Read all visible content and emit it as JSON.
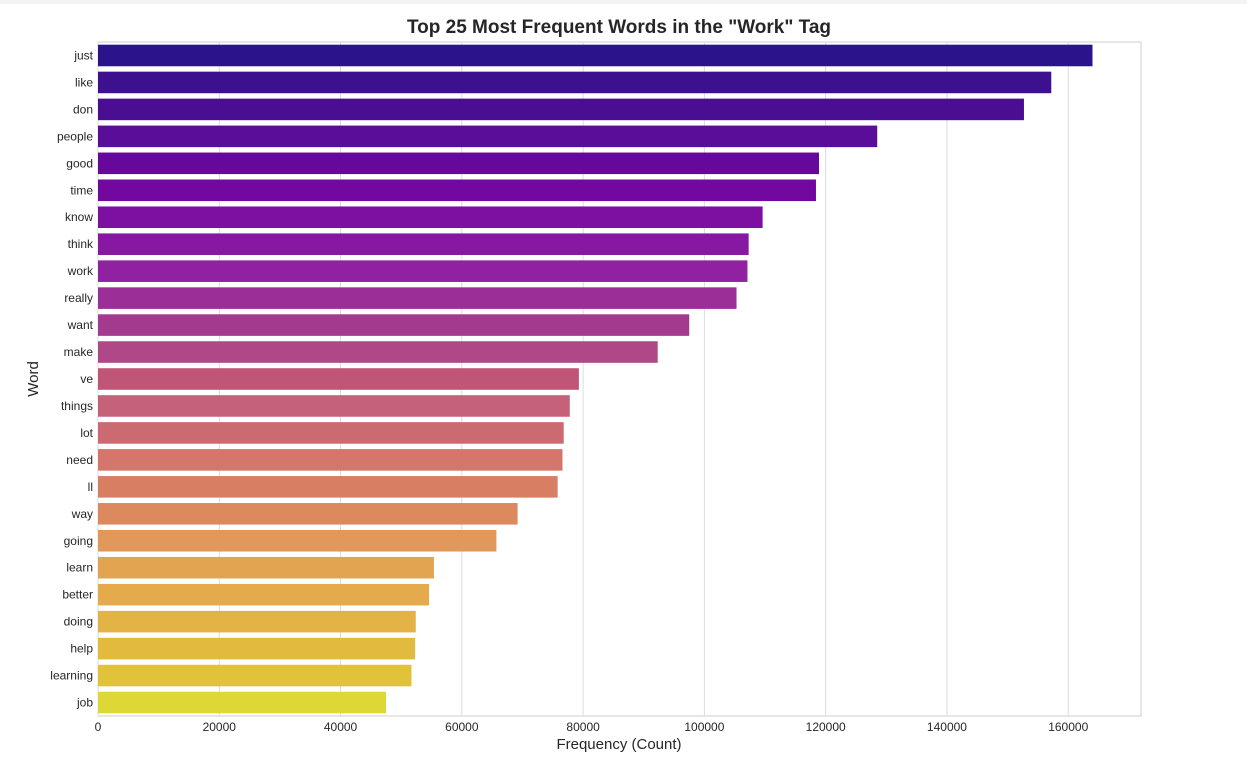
{
  "chart_data": {
    "type": "bar",
    "orientation": "horizontal",
    "title": "Top 25 Most Frequent Words in the \"Work\" Tag",
    "xlabel": "Frequency (Count)",
    "ylabel": "Word",
    "xlim": [
      0,
      172000
    ],
    "xticks": [
      0,
      20000,
      40000,
      60000,
      80000,
      100000,
      120000,
      140000,
      160000
    ],
    "grid": "vertical",
    "colormap": "plasma",
    "categories": [
      "just",
      "like",
      "don",
      "people",
      "good",
      "time",
      "know",
      "think",
      "work",
      "really",
      "want",
      "make",
      "ve",
      "things",
      "lot",
      "need",
      "ll",
      "way",
      "going",
      "learn",
      "better",
      "doing",
      "help",
      "learning",
      "job"
    ],
    "values": [
      164000,
      157200,
      152700,
      128500,
      118900,
      118400,
      109600,
      107300,
      107100,
      105300,
      97500,
      92300,
      79300,
      77800,
      76800,
      76600,
      75800,
      69200,
      65700,
      55400,
      54600,
      52400,
      52300,
      51700,
      47500
    ],
    "colors": [
      "#2b138b",
      "#3c108e",
      "#4a0e93",
      "#590d98",
      "#65099c",
      "#72089f",
      "#7d0fa1",
      "#8618a1",
      "#9021a0",
      "#9b2f97",
      "#a33a8e",
      "#ae4886",
      "#bf5677",
      "#c6617a",
      "#cc6a72",
      "#d4766b",
      "#d87f63",
      "#dc8a5d",
      "#e1985a",
      "#e3a451",
      "#e4aa4c",
      "#e3b345",
      "#e2bb3e",
      "#e0c33a",
      "#ddd836"
    ]
  }
}
